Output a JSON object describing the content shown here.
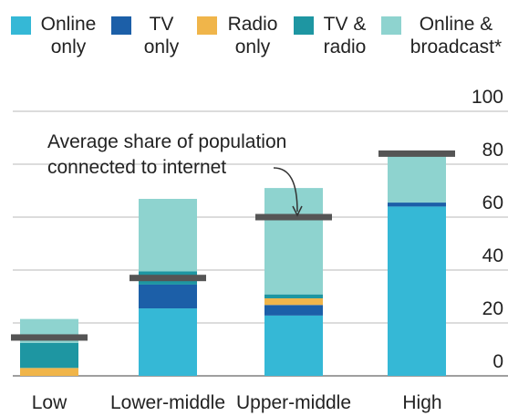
{
  "chart_data": {
    "type": "stacked-bar",
    "categories": [
      "Low",
      "Lower-middle",
      "Upper-middle",
      "High"
    ],
    "series": [
      {
        "name": "Online only",
        "color": "#35b8d6",
        "values": [
          0,
          25.5,
          22.8,
          64
        ]
      },
      {
        "name": "TV only",
        "color": "#1c5fa8",
        "values": [
          0,
          9,
          4,
          1.5
        ]
      },
      {
        "name": "Radio only",
        "color": "#f0b54a",
        "values": [
          3,
          0,
          2.5,
          0
        ]
      },
      {
        "name": "TV & radio",
        "color": "#1e96a2",
        "values": [
          9.5,
          5,
          1.5,
          0
        ]
      },
      {
        "name": "Online & broadcast*",
        "color": "#8ed3cf",
        "values": [
          9,
          27.4,
          40.2,
          18.5
        ]
      }
    ],
    "markers": {
      "color": "#555555",
      "values": [
        14.5,
        37,
        60,
        84
      ]
    },
    "annotation": [
      "Average share of population",
      "connected to internet"
    ],
    "ylim": [
      0,
      100
    ],
    "yticks": [
      0,
      20,
      40,
      60,
      80,
      100
    ],
    "grid": true
  }
}
